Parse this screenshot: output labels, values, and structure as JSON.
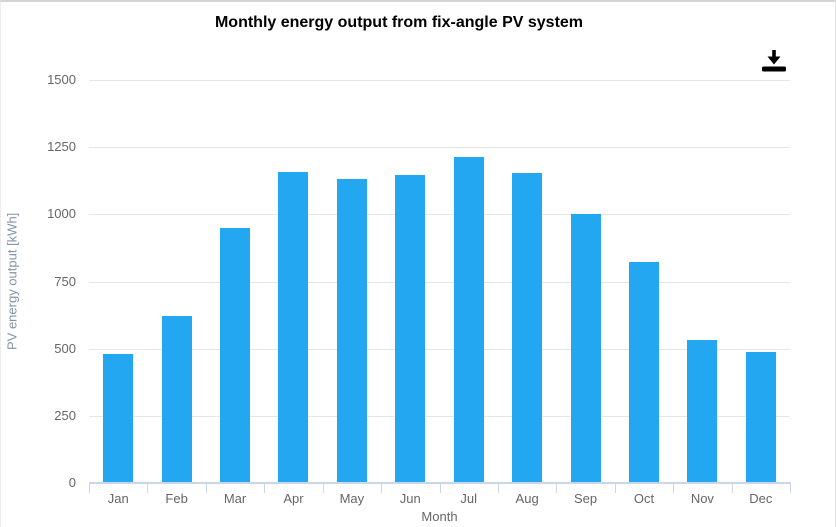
{
  "toolbar": {
    "download_icon": "download-icon"
  },
  "chart_data": {
    "type": "bar",
    "title": "Monthly energy output from fix-angle PV system",
    "xlabel": "Month",
    "ylabel": "PV energy output [kWh]",
    "categories": [
      "Jan",
      "Feb",
      "Mar",
      "Apr",
      "May",
      "Jun",
      "Jul",
      "Aug",
      "Sep",
      "Oct",
      "Nov",
      "Dec"
    ],
    "values": [
      480,
      622,
      950,
      1156,
      1131,
      1145,
      1213,
      1154,
      1000,
      821,
      532,
      488
    ],
    "ylim": [
      0,
      1500
    ],
    "yticks": [
      0,
      250,
      500,
      750,
      1000,
      1250,
      1500
    ],
    "grid": true,
    "legend": "none",
    "colors": {
      "bar": "#22a7f0",
      "gridline": "#e6e6e6",
      "axis_line": "#ccd6eb",
      "tick_label": "#666666",
      "y_axis_title": "#8094aa",
      "x_axis_title": "#666666",
      "title": "#000000",
      "download_icon": "#000000"
    }
  }
}
